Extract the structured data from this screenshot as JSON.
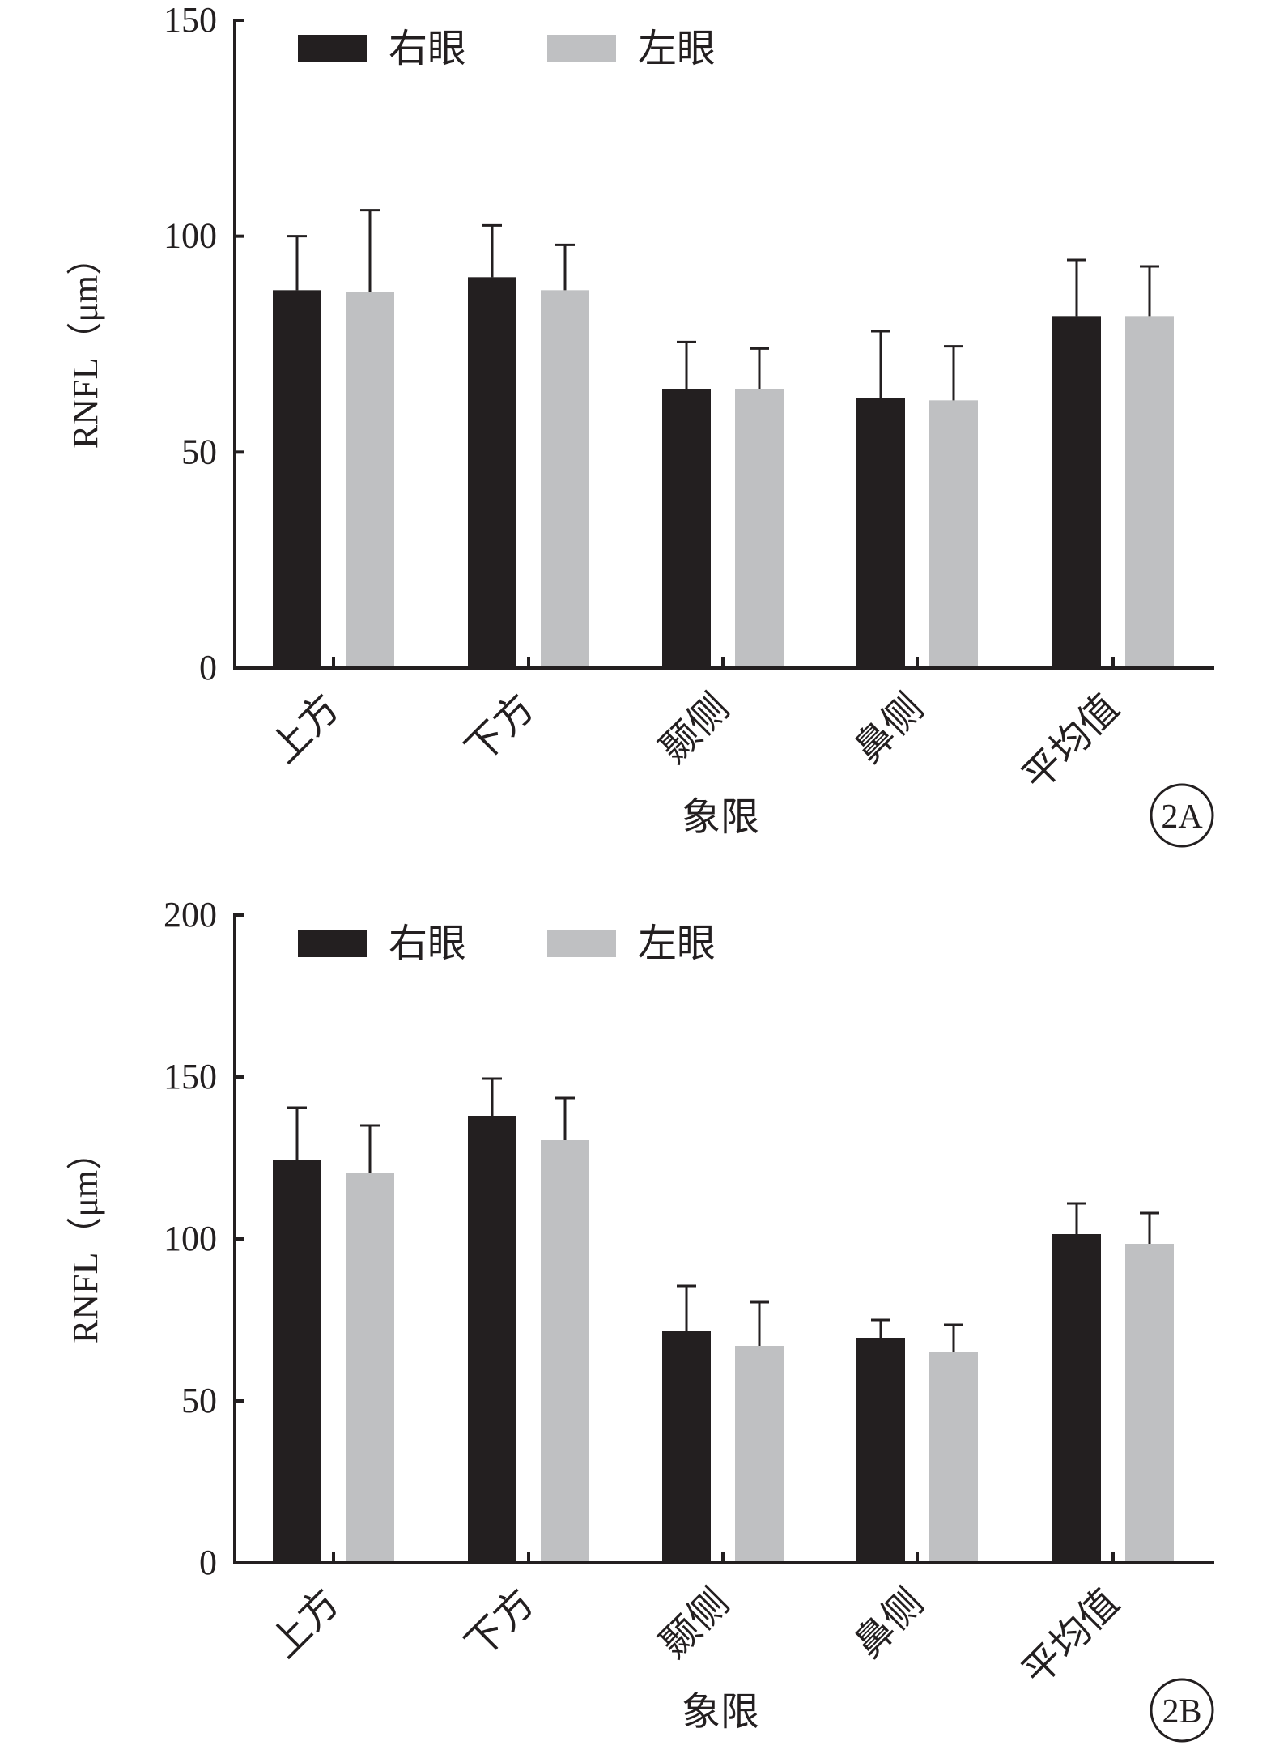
{
  "chart_data": [
    {
      "panel_label": "2A",
      "type": "bar",
      "ylabel": "RNFL（μm）",
      "xlabel": "象限",
      "ylim": [
        0,
        150
      ],
      "yticks": [
        "0",
        "50",
        "100",
        "150"
      ],
      "categories": [
        "上方",
        "下方",
        "颞侧",
        "鼻侧",
        "平均值"
      ],
      "legend_position": "top-left",
      "series": [
        {
          "name": "右眼",
          "color": "#231f20",
          "values": [
            87.5,
            90.5,
            64.5,
            62.5,
            81.5
          ],
          "error": [
            12.5,
            12.0,
            11.0,
            15.5,
            13.0
          ]
        },
        {
          "name": "左眼",
          "color": "#bfc0c2",
          "values": [
            87.0,
            87.5,
            64.5,
            62.0,
            81.5
          ],
          "error": [
            19.0,
            10.5,
            9.5,
            12.5,
            11.5
          ]
        }
      ]
    },
    {
      "panel_label": "2B",
      "type": "bar",
      "ylabel": "RNFL（μm）",
      "xlabel": "象限",
      "ylim": [
        0,
        200
      ],
      "yticks": [
        "0",
        "50",
        "100",
        "150",
        "200"
      ],
      "categories": [
        "上方",
        "下方",
        "颞侧",
        "鼻侧",
        "平均值"
      ],
      "legend_position": "top-left",
      "series": [
        {
          "name": "右眼",
          "color": "#231f20",
          "values": [
            124.5,
            138.0,
            71.5,
            69.5,
            101.5
          ],
          "error": [
            16.0,
            11.5,
            14.0,
            5.5,
            9.5
          ]
        },
        {
          "name": "左眼",
          "color": "#bfc0c2",
          "values": [
            120.5,
            130.5,
            67.0,
            65.0,
            98.5
          ],
          "error": [
            14.5,
            13.0,
            13.5,
            8.5,
            9.5
          ]
        }
      ]
    }
  ]
}
